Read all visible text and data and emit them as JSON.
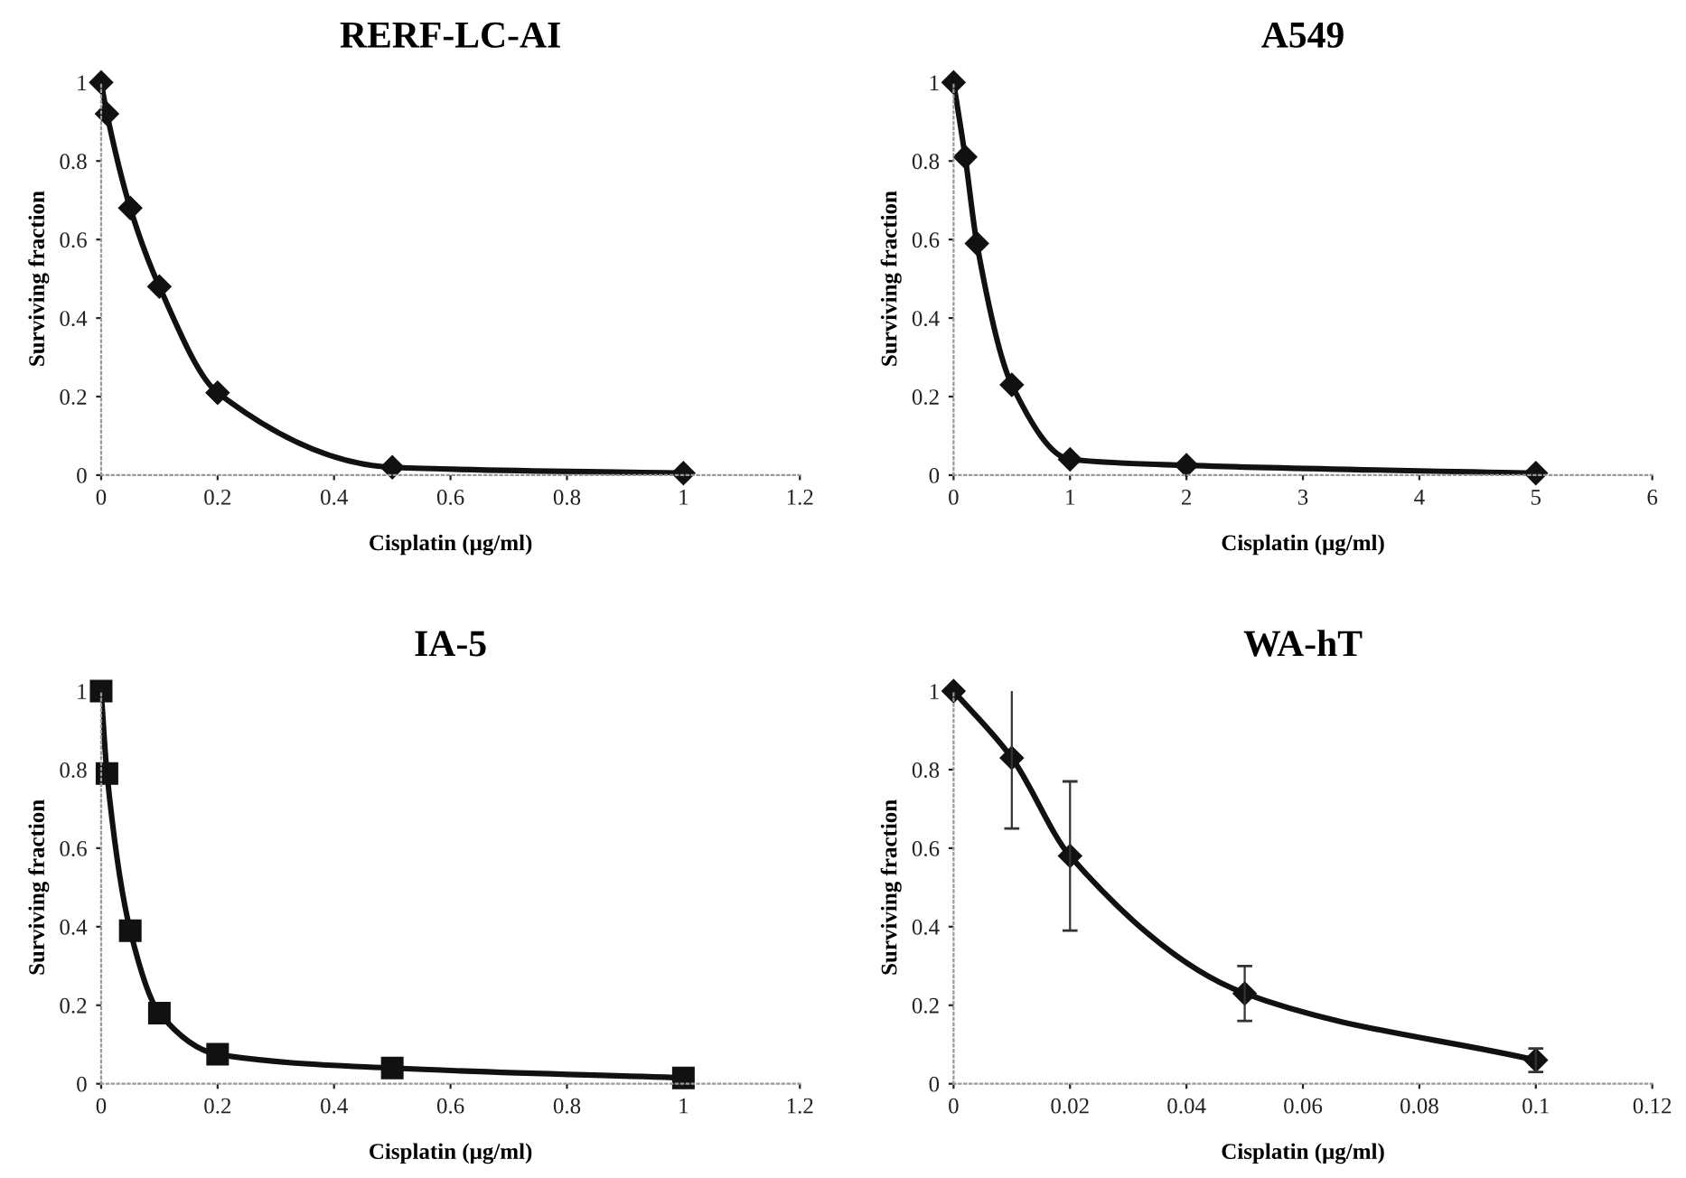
{
  "chart_data": [
    {
      "type": "line",
      "title": "RERF-LC-AI",
      "xlabel": "Cisplatin (μg/ml)",
      "ylabel": "Surviving fraction",
      "marker": "diamond",
      "grid": false,
      "xlim": [
        0,
        1.2
      ],
      "xticks": [
        0,
        0.2,
        0.4,
        0.6,
        0.8,
        1,
        1.2
      ],
      "ylim": [
        0,
        1
      ],
      "yticks": [
        0,
        0.2,
        0.4,
        0.6,
        0.8,
        1
      ],
      "series": [
        {
          "color": "#111111",
          "x": [
            0,
            0.01,
            0.05,
            0.1,
            0.2,
            0.5,
            1
          ],
          "values": [
            1,
            0.92,
            0.68,
            0.48,
            0.21,
            0.02,
            0.005
          ]
        }
      ]
    },
    {
      "type": "line",
      "title": "A549",
      "xlabel": "Cisplatin (μg/ml)",
      "ylabel": "Surviving fraction",
      "marker": "diamond",
      "grid": false,
      "xlim": [
        0,
        6
      ],
      "xticks": [
        0,
        1,
        2,
        3,
        4,
        5,
        6
      ],
      "ylim": [
        0,
        1
      ],
      "yticks": [
        0,
        0.2,
        0.4,
        0.6,
        0.8,
        1
      ],
      "series": [
        {
          "color": "#111111",
          "x": [
            0,
            0.1,
            0.2,
            0.5,
            1,
            2,
            5
          ],
          "values": [
            1,
            0.81,
            0.59,
            0.23,
            0.04,
            0.025,
            0.005
          ]
        }
      ]
    },
    {
      "type": "line",
      "title": "IA-5",
      "xlabel": "Cisplatin (μg/ml)",
      "ylabel": "Surviving fraction",
      "marker": "square",
      "grid": false,
      "xlim": [
        0,
        1.2
      ],
      "xticks": [
        0,
        0.2,
        0.4,
        0.6,
        0.8,
        1,
        1.2
      ],
      "ylim": [
        0,
        1
      ],
      "yticks": [
        0,
        0.2,
        0.4,
        0.6,
        0.8,
        1
      ],
      "series": [
        {
          "color": "#111111",
          "x": [
            0,
            0.01,
            0.05,
            0.1,
            0.2,
            0.5,
            1
          ],
          "values": [
            1,
            0.79,
            0.39,
            0.18,
            0.075,
            0.04,
            0.015
          ]
        }
      ]
    },
    {
      "type": "line",
      "title": "WA-hT",
      "xlabel": "Cisplatin (μg/ml)",
      "ylabel": "Surviving fraction",
      "marker": "diamond",
      "grid": false,
      "xlim": [
        0,
        0.12
      ],
      "xticks": [
        0,
        0.02,
        0.04,
        0.06,
        0.08,
        0.1,
        0.12
      ],
      "ylim": [
        0,
        1
      ],
      "yticks": [
        0,
        0.2,
        0.4,
        0.6,
        0.8,
        1
      ],
      "series": [
        {
          "color": "#111111",
          "x": [
            0,
            0.01,
            0.02,
            0.05,
            0.1
          ],
          "values": [
            1,
            0.83,
            0.58,
            0.23,
            0.06
          ],
          "errors": [
            null,
            0.18,
            0.19,
            0.07,
            0.03
          ]
        }
      ]
    }
  ]
}
